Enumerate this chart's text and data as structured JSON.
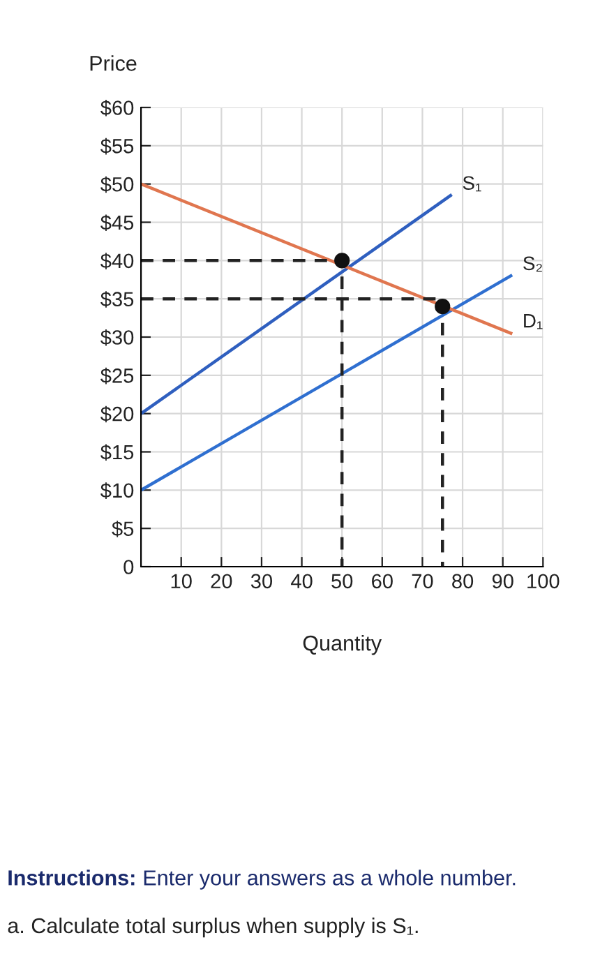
{
  "chart_data": {
    "type": "line",
    "ylabel": "Price",
    "xlabel": "Quantity",
    "xlim": [
      0,
      100
    ],
    "xticks": [
      10,
      20,
      30,
      40,
      50,
      60,
      70,
      80,
      90,
      100
    ],
    "ylim": [
      0,
      60
    ],
    "yticks": [
      {
        "value": 0,
        "label": "0"
      },
      {
        "value": 5,
        "label": "$5"
      },
      {
        "value": 10,
        "label": "$10"
      },
      {
        "value": 15,
        "label": "$15"
      },
      {
        "value": 20,
        "label": "$20"
      },
      {
        "value": 25,
        "label": "$25"
      },
      {
        "value": 30,
        "label": "$30"
      },
      {
        "value": 35,
        "label": "$35"
      },
      {
        "value": 40,
        "label": "$40"
      },
      {
        "value": 45,
        "label": "$45"
      },
      {
        "value": 50,
        "label": "$50"
      },
      {
        "value": 55,
        "label": "$55"
      },
      {
        "value": 60,
        "label": "$60"
      }
    ],
    "grid": true,
    "series": [
      {
        "name": "S₁",
        "color": "#2f5fbf",
        "x": [
          0,
          77
        ],
        "values": [
          20,
          48.5
        ]
      },
      {
        "name": "S₂",
        "color": "#2f6fd0",
        "x": [
          0,
          92
        ],
        "values": [
          10,
          38
        ]
      },
      {
        "name": "D₁",
        "color": "#e0764f",
        "x": [
          0,
          92
        ],
        "values": [
          50,
          30.5
        ]
      },
      {
        "type": "line",
        "line_style": "dashed",
        "color": "#222222",
        "x": [
          0,
          50,
          50
        ],
        "values": [
          40,
          40,
          0
        ]
      },
      {
        "type": "line",
        "line_style": "dashed",
        "color": "#222222",
        "x": [
          0,
          75,
          75
        ],
        "values": [
          35,
          35,
          0
        ]
      },
      {
        "type": "scatter",
        "marker": "circle",
        "color": "#111111",
        "x": [
          50,
          75
        ],
        "values": [
          40,
          34
        ]
      }
    ],
    "annotations": [
      "Instructions:",
      "Enter your answers as a whole number.",
      "a. Calculate total surplus when supply is S₁."
    ]
  }
}
